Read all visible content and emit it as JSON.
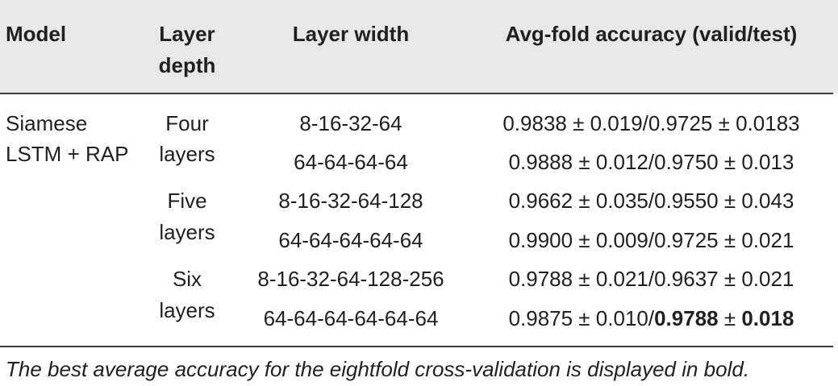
{
  "header": {
    "model": "Model",
    "depth_line1": "Layer",
    "depth_line2": "depth",
    "width": "Layer width",
    "accuracy": "Avg-fold accuracy (valid/test)"
  },
  "model": {
    "line1": "Siamese",
    "line2": "LSTM + RAP"
  },
  "groups": [
    {
      "depth_line1": "Four",
      "depth_line2": "layers"
    },
    {
      "depth_line1": "Five",
      "depth_line2": "layers"
    },
    {
      "depth_line1": "Six",
      "depth_line2": "layers"
    }
  ],
  "rows": [
    {
      "width": "8-16-32-64",
      "accuracy": "0.9838 ± 0.019/0.9725 ± 0.0183"
    },
    {
      "width": "64-64-64-64",
      "accuracy": "0.9888 ± 0.012/0.9750 ± 0.013"
    },
    {
      "width": "8-16-32-64-128",
      "accuracy": "0.9662 ± 0.035/0.9550 ± 0.043"
    },
    {
      "width": "64-64-64-64-64",
      "accuracy": "0.9900 ± 0.009/0.9725 ± 0.021"
    },
    {
      "width": "8-16-32-64-128-256",
      "accuracy": "0.9788 ± 0.021/0.9637 ± 0.021"
    },
    {
      "width": "64-64-64-64-64-64",
      "accuracy_parts": {
        "a": "0.9875 ± 0.010/",
        "b": "0.9788",
        "c": " ± ",
        "d": "0.018"
      }
    }
  ],
  "caption": "The best average accuracy for the eightfold cross-validation is displayed in bold."
}
